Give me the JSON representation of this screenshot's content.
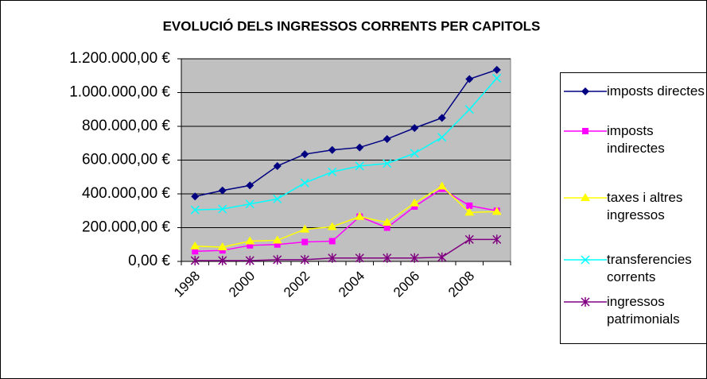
{
  "chart_data": {
    "type": "line",
    "title": "EVOLUCIÓ DELS INGRESSOS CORRENTS PER CAPITOLS",
    "categories": [
      "1998",
      null,
      "2000",
      null,
      "2002",
      null,
      "2004",
      null,
      "2006",
      null,
      "2008",
      null
    ],
    "series": [
      {
        "name": "imposts directes",
        "color": "#000080",
        "marker": "diamond",
        "values": [
          385000,
          420000,
          450000,
          565000,
          635000,
          660000,
          675000,
          725000,
          790000,
          850000,
          1080000,
          1135000
        ]
      },
      {
        "name": "imposts indirectes",
        "color": "#ff00ff",
        "marker": "square",
        "values": [
          60000,
          65000,
          95000,
          100000,
          115000,
          120000,
          265000,
          200000,
          325000,
          430000,
          330000,
          300000
        ]
      },
      {
        "name": "taxes i altres ingressos",
        "color": "#ffff00",
        "marker": "triangle",
        "values": [
          90000,
          85000,
          120000,
          125000,
          190000,
          205000,
          265000,
          230000,
          345000,
          445000,
          290000,
          295000
        ]
      },
      {
        "name": "transferencies corrents",
        "color": "#00ffff",
        "marker": "x",
        "values": [
          305000,
          310000,
          340000,
          370000,
          465000,
          530000,
          565000,
          580000,
          640000,
          735000,
          900000,
          1085000
        ]
      },
      {
        "name": "ingressos patrimonials",
        "color": "#800080",
        "marker": "star",
        "values": [
          5000,
          5000,
          5000,
          10000,
          10000,
          20000,
          20000,
          20000,
          20000,
          25000,
          130000,
          130000
        ]
      }
    ],
    "ylim": [
      0,
      1200000
    ],
    "yticks": [
      {
        "value": 0,
        "label": "0,00 €"
      },
      {
        "value": 200000,
        "label": "200.000,00 €"
      },
      {
        "value": 400000,
        "label": "400.000,00 €"
      },
      {
        "value": 600000,
        "label": "600.000,00 €"
      },
      {
        "value": 800000,
        "label": "800.000,00 €"
      },
      {
        "value": 1000000,
        "label": "1.000.000,00 €"
      },
      {
        "value": 1200000,
        "label": "1.200.000,00 €"
      }
    ],
    "grid": true,
    "plot_background": "#c0c0c0",
    "legend": "right"
  }
}
